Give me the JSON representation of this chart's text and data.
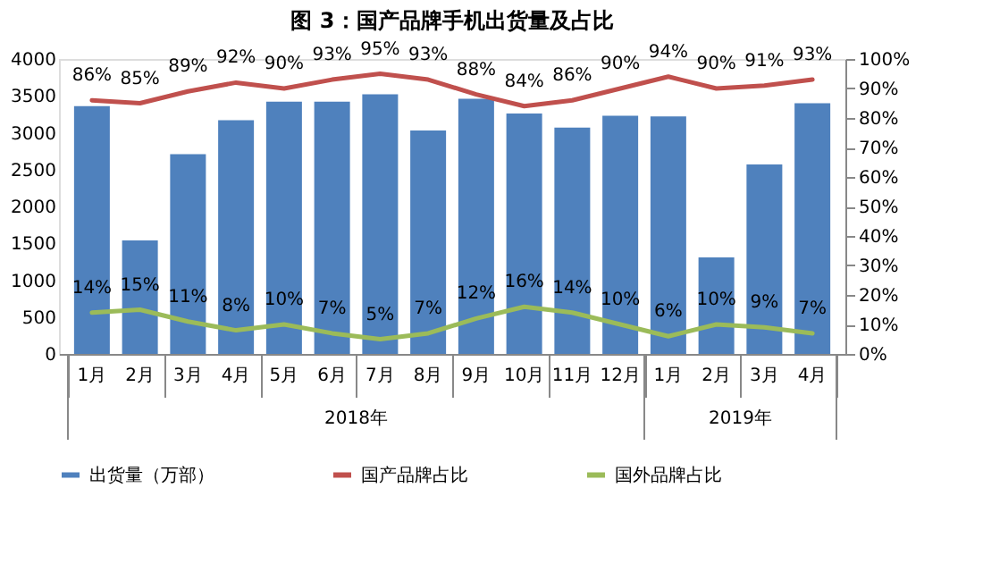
{
  "chart_data": {
    "type": "bar",
    "title": "图 3：国产品牌手机出货量及占比",
    "categories": [
      "1月",
      "2月",
      "3月",
      "4月",
      "5月",
      "6月",
      "7月",
      "8月",
      "9月",
      "10月",
      "11月",
      "12月",
      "1月",
      "2月",
      "3月",
      "4月"
    ],
    "series": [
      {
        "name": "出货量（万部）",
        "color": "#4f81bd",
        "values": [
          3360,
          1540,
          2710,
          3170,
          3420,
          3420,
          3520,
          3030,
          3460,
          3260,
          3070,
          3230,
          3220,
          1310,
          2570,
          3400
        ]
      },
      {
        "name": "国产品牌占比",
        "type": "line",
        "axis": "y2",
        "color": "#c0504d",
        "values": [
          86,
          85,
          89,
          92,
          90,
          93,
          95,
          93,
          88,
          84,
          86,
          90,
          94,
          90,
          91,
          93
        ],
        "value_labels": [
          "86%",
          "85%",
          "89%",
          "92%",
          "90%",
          "93%",
          "95%",
          "93%",
          "88%",
          "84%",
          "86%",
          "90%",
          "94%",
          "90%",
          "91%",
          "93%"
        ]
      },
      {
        "name": "国外品牌占比",
        "type": "line",
        "axis": "y2",
        "color": "#9bbb59",
        "values": [
          14,
          15,
          11,
          8,
          10,
          7,
          5,
          7,
          12,
          16,
          14,
          10,
          6,
          10,
          9,
          7
        ],
        "value_labels": [
          "14%",
          "15%",
          "11%",
          "8%",
          "10%",
          "7%",
          "5%",
          "7%",
          "12%",
          "16%",
          "14%",
          "10%",
          "6%",
          "10%",
          "9%",
          "7%"
        ]
      }
    ],
    "annotations": [
      "2018年",
      "2019年"
    ],
    "ylim": [
      0,
      4000
    ],
    "yticks": [
      0,
      500,
      1000,
      1500,
      2000,
      2500,
      3000,
      3500,
      4000
    ],
    "y2lim": [
      0,
      100
    ],
    "y2ticks": [
      {
        "value": 0,
        "label": "0%"
      },
      {
        "value": 10,
        "label": "10%"
      },
      {
        "value": 20,
        "label": "20%"
      },
      {
        "value": 30,
        "label": "30%"
      },
      {
        "value": 40,
        "label": "40%"
      },
      {
        "value": 50,
        "label": "50%"
      },
      {
        "value": 60,
        "label": "60%"
      },
      {
        "value": 70,
        "label": "70%"
      },
      {
        "value": 80,
        "label": "80%"
      },
      {
        "value": 90,
        "label": "90%"
      },
      {
        "value": 100,
        "label": "100%"
      }
    ],
    "grid": false,
    "legend": "bottom",
    "marker": "none",
    "line_style": "solid"
  }
}
